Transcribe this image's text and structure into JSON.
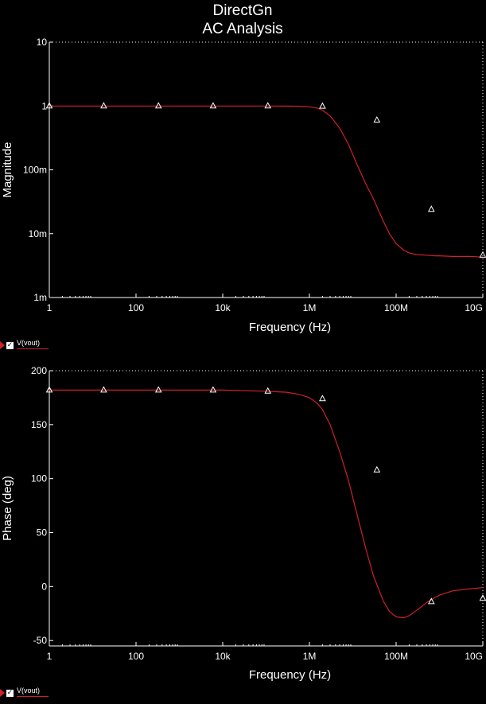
{
  "chart_data": [
    {
      "type": "line",
      "title": "DirectGn",
      "subtitle": "AC Analysis",
      "xlabel": "Frequency (Hz)",
      "ylabel": "Magnitude",
      "xscale": "log",
      "yscale": "log",
      "xlim": [
        1,
        10000000000
      ],
      "ylim": [
        0.001,
        10
      ],
      "xticks": [
        1,
        100,
        10000,
        1000000,
        100000000,
        10000000000
      ],
      "xtick_labels": [
        "1",
        "100",
        "10k",
        "1M",
        "100M",
        "10G"
      ],
      "yticks": [
        0.001,
        0.01,
        0.1,
        1,
        10
      ],
      "ytick_labels": [
        "1m",
        "10m",
        "100m",
        "1",
        "10"
      ],
      "grid": false,
      "legend": "bottom-left",
      "series": [
        {
          "name": "V(vout)",
          "color": "#d0202a",
          "x": [
            1,
            100,
            10000,
            100000,
            300000,
            600000,
            1000000,
            1500000,
            2000000,
            3000000,
            5000000,
            8000000,
            12000000,
            20000000,
            30000000,
            50000000,
            70000000,
            100000000,
            150000000,
            200000000,
            300000000,
            500000000,
            800000000,
            1000000000,
            2000000000,
            5000000000,
            10000000000
          ],
          "y": [
            1.0,
            1.0,
            1.0,
            1.0,
            0.995,
            0.99,
            0.97,
            0.93,
            0.86,
            0.7,
            0.45,
            0.25,
            0.13,
            0.06,
            0.035,
            0.016,
            0.01,
            0.007,
            0.0055,
            0.005,
            0.0047,
            0.0046,
            0.0045,
            0.0045,
            0.0044,
            0.0044,
            0.0043
          ]
        }
      ],
      "markers": [
        {
          "x": 1,
          "y": 1.0
        },
        {
          "x": 18,
          "y": 1.0
        },
        {
          "x": 330,
          "y": 1.0
        },
        {
          "x": 6000,
          "y": 1.0
        },
        {
          "x": 110000,
          "y": 1.0
        },
        {
          "x": 2000000,
          "y": 0.99
        },
        {
          "x": 36000000,
          "y": 0.6
        },
        {
          "x": 650000000,
          "y": 0.024
        },
        {
          "x": 12000000000,
          "y": 0.0046
        }
      ]
    },
    {
      "type": "line",
      "xlabel": "Frequency (Hz)",
      "ylabel": "Phase (deg)",
      "xscale": "log",
      "xlim": [
        1,
        10000000000
      ],
      "ylim": [
        -55,
        200
      ],
      "xticks": [
        1,
        100,
        10000,
        1000000,
        100000000,
        10000000000
      ],
      "xtick_labels": [
        "1",
        "100",
        "10k",
        "1M",
        "100M",
        "10G"
      ],
      "yticks": [
        -50,
        0,
        50,
        100,
        150,
        200
      ],
      "ytick_labels": [
        "-50",
        "0",
        "50",
        "100",
        "150",
        "200"
      ],
      "grid": false,
      "legend": "bottom-left",
      "series": [
        {
          "name": "V(vout)",
          "color": "#d0202a",
          "x": [
            1,
            100,
            10000,
            100000,
            300000,
            600000,
            1000000,
            1500000,
            2000000,
            3000000,
            5000000,
            8000000,
            12000000,
            20000000,
            30000000,
            50000000,
            70000000,
            100000000,
            150000000,
            200000000,
            300000000,
            500000000,
            800000000,
            1000000000,
            2000000000,
            5000000000,
            10000000000
          ],
          "y": [
            182,
            182,
            182,
            181,
            180,
            178,
            175,
            170,
            164,
            150,
            125,
            98,
            70,
            35,
            10,
            -13,
            -23,
            -28,
            -29,
            -27,
            -22,
            -15,
            -10,
            -8,
            -4,
            -2,
            -1
          ]
        }
      ],
      "markers": [
        {
          "x": 1,
          "y": 182
        },
        {
          "x": 18,
          "y": 182
        },
        {
          "x": 330,
          "y": 182
        },
        {
          "x": 6000,
          "y": 182
        },
        {
          "x": 110000,
          "y": 181
        },
        {
          "x": 2000000,
          "y": 174
        },
        {
          "x": 36000000,
          "y": 108
        },
        {
          "x": 650000000,
          "y": -14
        },
        {
          "x": 12000000000,
          "y": -11
        }
      ]
    }
  ],
  "legend_items": [
    {
      "name": "V(vout)",
      "check": "✓"
    },
    {
      "name": "V(vout)",
      "check": "✓"
    }
  ]
}
